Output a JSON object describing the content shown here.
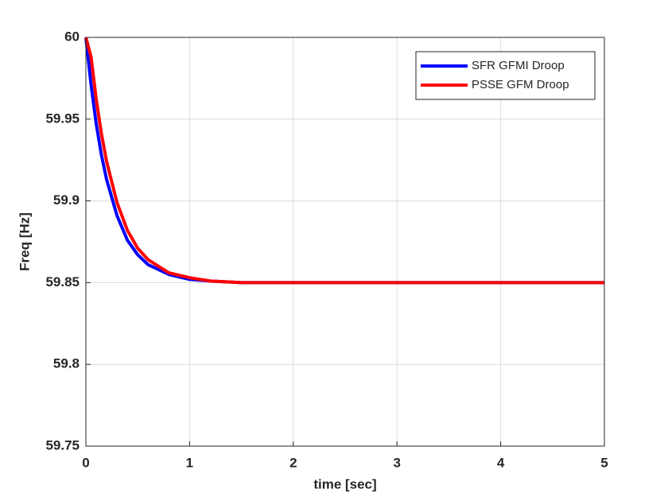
{
  "chart_data": {
    "type": "line",
    "xlabel": "time [sec]",
    "ylabel": "Freq [Hz]",
    "x": [
      0,
      0.05,
      0.1,
      0.15,
      0.2,
      0.3,
      0.4,
      0.5,
      0.6,
      0.8,
      1,
      1.2,
      1.5,
      2,
      3,
      4,
      5
    ],
    "series": [
      {
        "name": "SFR GFMI Droop",
        "color": "#0000ff",
        "values": [
          60,
          59.971,
          59.947,
          59.928,
          59.913,
          59.891,
          59.876,
          59.867,
          59.861,
          59.855,
          59.852,
          59.851,
          59.85,
          59.85,
          59.85,
          59.85,
          59.85
        ]
      },
      {
        "name": "PSSE GFM Droop",
        "color": "#ff0000",
        "values": [
          60,
          59.988,
          59.962,
          59.941,
          59.924,
          59.899,
          59.882,
          59.871,
          59.864,
          59.856,
          59.853,
          59.851,
          59.85,
          59.85,
          59.85,
          59.85,
          59.85
        ]
      }
    ],
    "xlim": [
      0,
      5
    ],
    "xticks": [
      0,
      1,
      2,
      3,
      4,
      5
    ],
    "ylim": [
      59.75,
      60
    ],
    "yticks": [
      59.75,
      59.8,
      59.85,
      59.9,
      59.95,
      60
    ],
    "grid": true,
    "legend": "northeast"
  }
}
